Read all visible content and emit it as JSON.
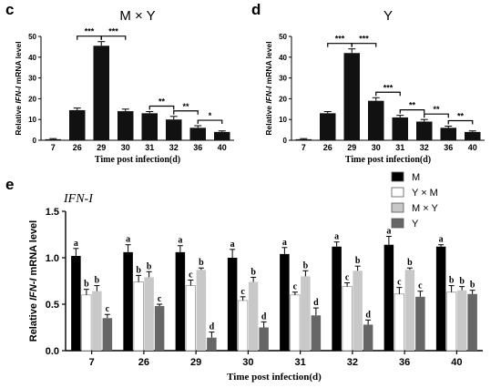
{
  "chart_data": [
    {
      "type": "bar",
      "panel_label": "c",
      "title": "M × Y",
      "ylabel_parts": [
        "Relative ",
        "IFN-I",
        " mRNA level"
      ],
      "xlabel": "Time post infection(d)",
      "categories": [
        "7",
        "26",
        "29",
        "30",
        "31",
        "32",
        "36",
        "40"
      ],
      "values": [
        0.5,
        14.5,
        45.5,
        14,
        13,
        10,
        6,
        4
      ],
      "errors": [
        0.3,
        1.0,
        2.0,
        1.0,
        0.8,
        1.5,
        1.0,
        0.5
      ],
      "yticks": [
        "0",
        "10",
        "20",
        "30",
        "40",
        "50"
      ],
      "ylim": [
        0,
        50
      ],
      "bar_color": "#111111",
      "significance": [
        {
          "from": "26",
          "to": "29",
          "label": "***"
        },
        {
          "from": "29",
          "to": "30",
          "label": "***"
        },
        {
          "from": "31",
          "to": "32",
          "label": "**"
        },
        {
          "from": "32",
          "to": "36",
          "label": "**"
        },
        {
          "from": "36",
          "to": "40",
          "label": "*"
        }
      ]
    },
    {
      "type": "bar",
      "panel_label": "d",
      "title": "Y",
      "ylabel_parts": [
        "Relative ",
        "IFN-I",
        " mRNA level"
      ],
      "xlabel": "Time post infection(d)",
      "categories": [
        "7",
        "26",
        "29",
        "30",
        "31",
        "32",
        "36",
        "40"
      ],
      "values": [
        0.5,
        13,
        42,
        19,
        11,
        9,
        6,
        4
      ],
      "errors": [
        0.3,
        0.8,
        2.0,
        1.5,
        1.0,
        1.0,
        0.8,
        0.5
      ],
      "yticks": [
        "0",
        "10",
        "20",
        "30",
        "40",
        "50"
      ],
      "ylim": [
        0,
        50
      ],
      "bar_color": "#111111",
      "significance": [
        {
          "from": "26",
          "to": "29",
          "label": "***"
        },
        {
          "from": "29",
          "to": "30",
          "label": "***"
        },
        {
          "from": "30",
          "to": "31",
          "label": "***"
        },
        {
          "from": "31",
          "to": "32",
          "label": "**"
        },
        {
          "from": "32",
          "to": "36",
          "label": "**"
        },
        {
          "from": "36",
          "to": "40",
          "label": "**"
        }
      ]
    },
    {
      "type": "bar",
      "panel_label": "e",
      "title": "IFN-I",
      "ylabel_parts": [
        "Relative ",
        "IFN-I",
        " mRNA level"
      ],
      "xlabel": "Time post infection(d)",
      "categories": [
        "7",
        "26",
        "29",
        "30",
        "31",
        "32",
        "36",
        "40"
      ],
      "yticks": [
        "0.0",
        "0.5",
        "1.0",
        "1.5"
      ],
      "ylim": [
        0,
        1.5
      ],
      "legend_position": "top-right",
      "series": [
        {
          "name": "M",
          "color": "#000000",
          "values": [
            1.02,
            1.06,
            1.06,
            1.0,
            1.04,
            1.12,
            1.14,
            1.12
          ],
          "errors": [
            0.08,
            0.08,
            0.07,
            0.09,
            0.07,
            0.05,
            0.09,
            0.02
          ],
          "letters": [
            "a",
            "a",
            "a",
            "a",
            "a",
            "a",
            "a",
            "a"
          ]
        },
        {
          "name": "Y × M",
          "color": "#ffffff",
          "values": [
            0.6,
            0.74,
            0.7,
            0.54,
            0.6,
            0.69,
            0.61,
            0.63
          ],
          "errors": [
            0.06,
            0.07,
            0.06,
            0.04,
            0.03,
            0.04,
            0.07,
            0.07
          ],
          "letters": [
            "b",
            "b",
            "c",
            "c",
            "c",
            "c",
            "c",
            "b"
          ]
        },
        {
          "name": "M × Y",
          "color": "#c8c8c8",
          "values": [
            0.64,
            0.79,
            0.87,
            0.74,
            0.8,
            0.86,
            0.87,
            0.65
          ],
          "errors": [
            0.06,
            0.06,
            0.02,
            0.05,
            0.06,
            0.05,
            0.02,
            0.04
          ],
          "letters": [
            "b",
            "b",
            "b",
            "b",
            "b",
            "b",
            "b",
            "b"
          ]
        },
        {
          "name": "Y",
          "color": "#666666",
          "values": [
            0.35,
            0.48,
            0.14,
            0.25,
            0.38,
            0.28,
            0.58,
            0.61
          ],
          "errors": [
            0.04,
            0.02,
            0.06,
            0.06,
            0.08,
            0.05,
            0.06,
            0.04
          ],
          "letters": [
            "c",
            "c",
            "d",
            "d",
            "d",
            "d",
            "c",
            "b"
          ]
        }
      ]
    }
  ]
}
